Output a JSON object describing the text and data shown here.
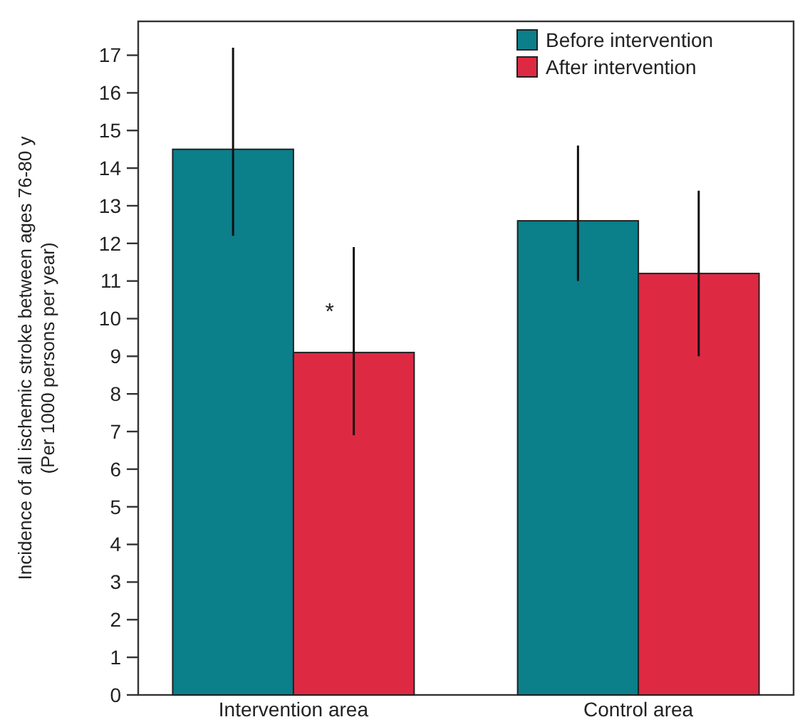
{
  "chart_data": {
    "type": "bar",
    "ylabel": "Incidence of all ischemic stroke between ages 76-80 y\n(Per 1000 persons per year)",
    "categories": [
      "Intervention area",
      "Control area"
    ],
    "series": [
      {
        "name": "Before intervention",
        "color": "#0b7f8a",
        "values": [
          14.5,
          12.6
        ],
        "errors": [
          [
            12.2,
            17.2
          ],
          [
            11.0,
            14.6
          ]
        ]
      },
      {
        "name": "After intervention",
        "color": "#de2943",
        "values": [
          9.1,
          11.2
        ],
        "errors": [
          [
            6.9,
            11.9
          ],
          [
            9.0,
            13.4
          ]
        ]
      }
    ],
    "ylim": [
      0,
      17.9
    ],
    "yticks": [
      0,
      1,
      2,
      3,
      4,
      5,
      6,
      7,
      8,
      9,
      10,
      11,
      12,
      13,
      14,
      15,
      16,
      17
    ],
    "legend": "top right",
    "grid": false,
    "annotations": [
      {
        "text": "*",
        "x": "Intervention area",
        "y": 10
      }
    ]
  }
}
